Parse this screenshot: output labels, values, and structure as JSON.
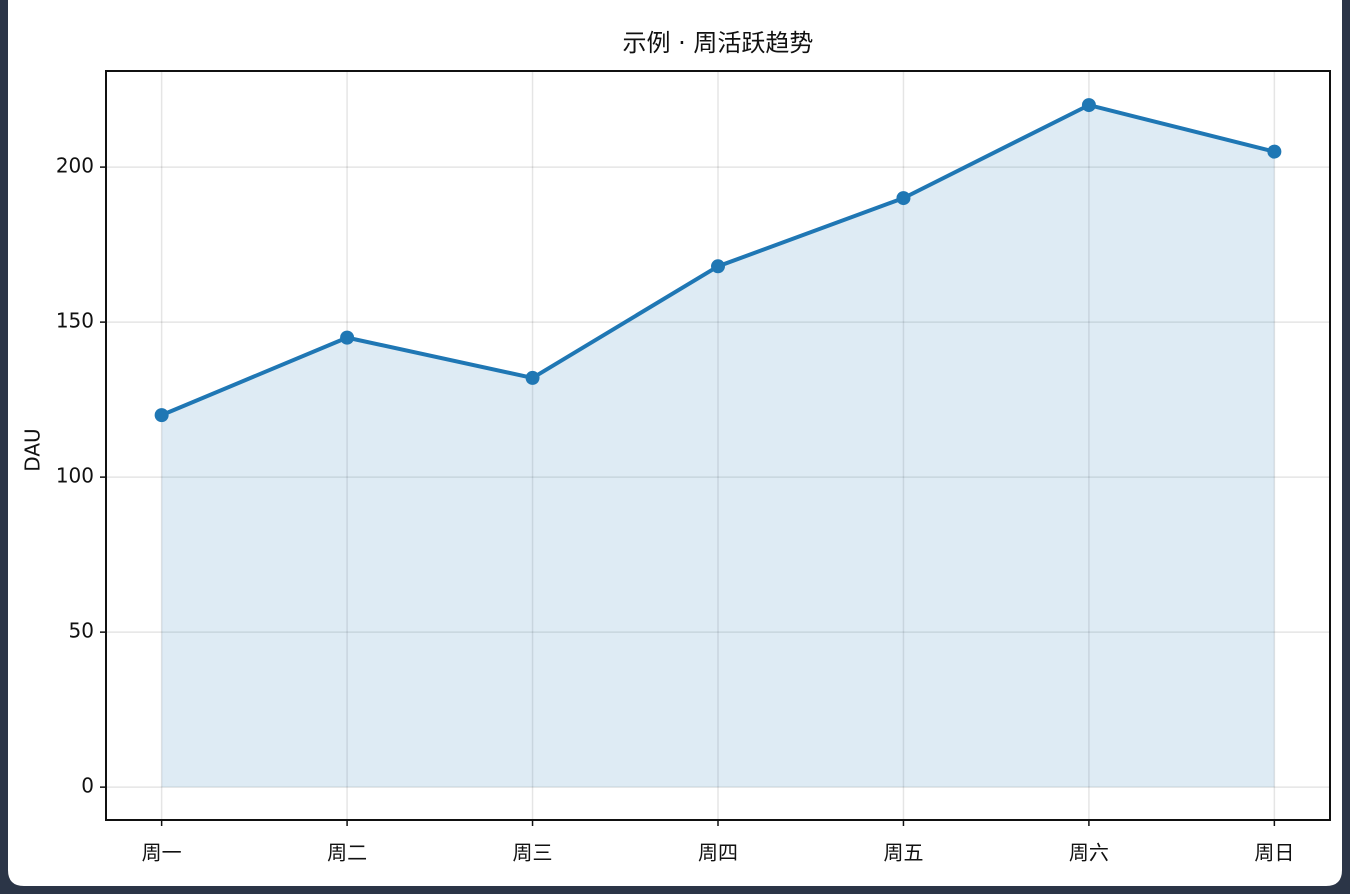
{
  "chart_data": {
    "type": "area",
    "title": "示例 · 周活跃趋势",
    "y_label": "DAU",
    "categories": [
      "周一",
      "周二",
      "周三",
      "周四",
      "周五",
      "周六",
      "周日"
    ],
    "series": [
      {
        "name": "DAU",
        "color": "#1f77b4",
        "values": [
          120,
          145,
          132,
          168,
          190,
          220,
          205
        ]
      }
    ],
    "ylim": [
      -10.6,
      231
    ],
    "yticks": [
      0,
      50,
      100,
      150,
      200
    ],
    "grid": true,
    "markers": true
  }
}
